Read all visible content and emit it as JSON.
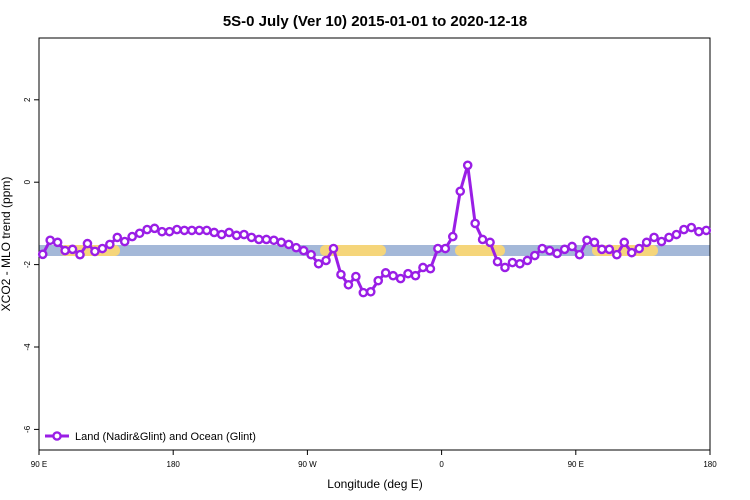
{
  "chart_data": {
    "type": "line",
    "title": "5S-0 July (Ver 10)   2015-01-01 to 2020-12-18",
    "x_label": "Longitude (deg E)",
    "y_label": "XCO2 - MLO trend (ppm)",
    "xlim": [
      90,
      540
    ],
    "xticks": [
      {
        "value": 90,
        "label": "90 E"
      },
      180,
      {
        "value": 270,
        "label": "90 W"
      },
      {
        "value": 360,
        "label": "0"
      },
      {
        "value": 450,
        "label": "90 E"
      },
      {
        "value": 540,
        "label": "180"
      }
    ],
    "ylim": [
      -6.5,
      3.5
    ],
    "yticks": [
      -6,
      -4,
      -2,
      0,
      2
    ],
    "legend": "bottom-left",
    "x": [
      92.5,
      97.5,
      102.5,
      107.5,
      112.5,
      117.5,
      122.5,
      127.5,
      132.5,
      137.5,
      142.5,
      147.5,
      152.5,
      157.5,
      162.5,
      167.5,
      172.5,
      177.5,
      182.5,
      187.5,
      192.5,
      197.5,
      202.5,
      207.5,
      212.5,
      217.5,
      222.5,
      227.5,
      232.5,
      237.5,
      242.5,
      247.5,
      252.5,
      257.5,
      262.5,
      267.5,
      272.5,
      277.5,
      282.5,
      287.5,
      292.5,
      297.5,
      302.5,
      307.5,
      312.5,
      317.5,
      322.5,
      327.5,
      332.5,
      337.5,
      342.5,
      347.5,
      352.5,
      357.5,
      362.5,
      367.5,
      372.5,
      377.5,
      382.5,
      387.5,
      392.5,
      397.5,
      402.5,
      407.5,
      412.5,
      417.5,
      422.5,
      427.5,
      432.5,
      437.5,
      442.5,
      447.5,
      452.5,
      457.5,
      462.5,
      467.5,
      472.5,
      477.5,
      482.5,
      487.5,
      492.5,
      497.5,
      502.5,
      507.5,
      512.5,
      517.5,
      522.5,
      527.5,
      532.5,
      537.5
    ],
    "series": [
      {
        "name": "Land (Nadir&Glint) and Ocean (Glint)",
        "color": "#9a1ee6",
        "values": [
          -1.75,
          -1.41,
          -1.46,
          -1.66,
          -1.63,
          -1.76,
          -1.49,
          -1.68,
          -1.61,
          -1.51,
          -1.34,
          -1.44,
          -1.32,
          -1.24,
          -1.15,
          -1.12,
          -1.2,
          -1.2,
          -1.15,
          -1.17,
          -1.17,
          -1.17,
          -1.17,
          -1.22,
          -1.27,
          -1.22,
          -1.29,
          -1.27,
          -1.34,
          -1.39,
          -1.39,
          -1.41,
          -1.46,
          -1.51,
          -1.59,
          -1.66,
          -1.76,
          -1.98,
          -1.9,
          -1.61,
          -2.24,
          -2.49,
          -2.29,
          -2.68,
          -2.66,
          -2.39,
          -2.2,
          -2.27,
          -2.34,
          -2.22,
          -2.27,
          -2.07,
          -2.1,
          -1.61,
          -1.61,
          -1.32,
          -0.22,
          0.41,
          -1.0,
          -1.39,
          -1.46,
          -1.93,
          -2.07,
          -1.95,
          -1.98,
          -1.9,
          -1.78,
          -1.61,
          -1.66,
          -1.73,
          -1.63,
          -1.56,
          -1.76,
          -1.41,
          -1.46,
          -1.63,
          -1.63,
          -1.76,
          -1.46,
          -1.71,
          -1.61,
          -1.46,
          -1.34,
          -1.44,
          -1.34,
          -1.27,
          -1.15,
          -1.1,
          -1.2,
          -1.17
        ]
      }
    ]
  }
}
